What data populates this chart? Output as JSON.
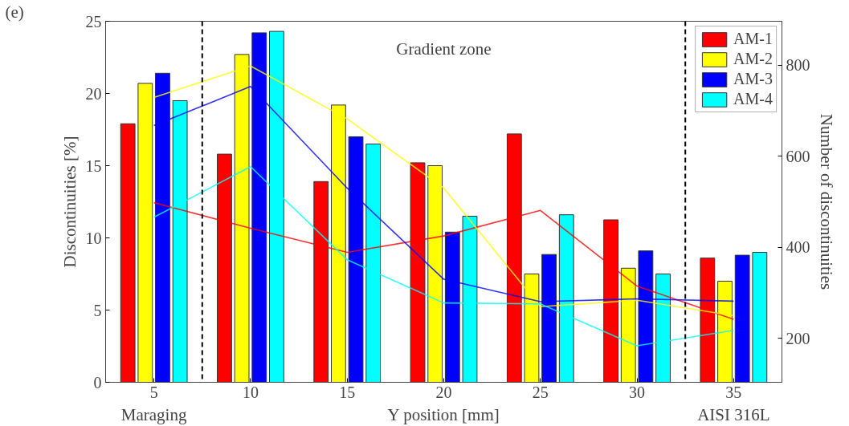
{
  "chart_data": {
    "type": "bar",
    "xlabel": "Y position [mm]",
    "ylabel": "Discontinuities [%]",
    "y2label": "Number of discontinuities",
    "x": [
      5,
      10,
      15,
      20,
      25,
      30,
      35
    ],
    "xlim": [
      2.5,
      37.5
    ],
    "xticks": [
      5,
      10,
      15,
      20,
      25,
      30,
      35
    ],
    "ylim": [
      0,
      25
    ],
    "yticks": [
      0,
      5,
      10,
      15,
      20,
      25
    ],
    "y2lim": [
      104,
      896
    ],
    "y2ticks": [
      200,
      400,
      600,
      800
    ],
    "series": [
      {
        "name": "AM-1",
        "color": "#ff0000",
        "values": [
          17.9,
          15.8,
          13.9,
          15.2,
          17.2,
          11.25,
          8.6
        ]
      },
      {
        "name": "AM-2",
        "color": "#ffff00",
        "values": [
          20.7,
          22.7,
          19.2,
          15.0,
          7.5,
          7.9,
          7.0
        ]
      },
      {
        "name": "AM-3",
        "color": "#0000ff",
        "values": [
          21.4,
          24.2,
          17.0,
          10.4,
          8.85,
          9.1,
          8.8
        ]
      },
      {
        "name": "AM-4",
        "color": "#00ffff",
        "values": [
          19.5,
          24.3,
          16.5,
          11.5,
          11.6,
          7.5,
          9.0
        ]
      },
      {
        "type": "line",
        "axis": "y2",
        "color": "#ff0000",
        "values": [
          498,
          442,
          389,
          425,
          481,
          315,
          242
        ]
      },
      {
        "type": "line",
        "axis": "y2",
        "color": "#ffff00",
        "values": [
          729,
          798,
          682,
          530,
          270,
          284,
          250
        ]
      },
      {
        "type": "line",
        "axis": "y2",
        "color": "#0000ff",
        "values": [
          667,
          753,
          530,
          330,
          281,
          287,
          282
        ]
      },
      {
        "type": "line",
        "axis": "y2",
        "color": "#00ffff",
        "values": [
          466,
          577,
          373,
          278,
          276,
          184,
          218
        ]
      }
    ],
    "ref_lines": [
      {
        "axis": "x",
        "value": 7.5,
        "color": "#000000",
        "line_style": "dashed"
      },
      {
        "axis": "x",
        "value": 32.5,
        "color": "#000000",
        "line_style": "dashed"
      }
    ],
    "annotations": [
      "(e)",
      "Gradient zone",
      "Maraging",
      "AISI 316L"
    ],
    "legend": "top right",
    "grid": false
  }
}
